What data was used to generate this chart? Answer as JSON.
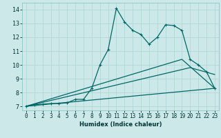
{
  "xlabel": "Humidex (Indice chaleur)",
  "background_color": "#cce8e8",
  "grid_color": "#aad4d4",
  "line_color1": "#006666",
  "line_color2": "#006666",
  "xlim": [
    -0.5,
    23.5
  ],
  "ylim": [
    6.7,
    14.5
  ],
  "xticks": [
    0,
    1,
    2,
    3,
    4,
    5,
    6,
    7,
    8,
    9,
    10,
    11,
    12,
    13,
    14,
    15,
    16,
    17,
    18,
    19,
    20,
    21,
    22,
    23
  ],
  "yticks": [
    7,
    8,
    9,
    10,
    11,
    12,
    13,
    14
  ],
  "series1_x": [
    0,
    1,
    2,
    3,
    4,
    5,
    6,
    7,
    8,
    9,
    10,
    11,
    12,
    13,
    14,
    15,
    16,
    17,
    18,
    19,
    20,
    21,
    22,
    23
  ],
  "series1_y": [
    7.0,
    7.1,
    7.15,
    7.2,
    7.2,
    7.25,
    7.5,
    7.5,
    8.3,
    10.0,
    11.1,
    14.1,
    13.1,
    12.5,
    12.2,
    11.5,
    12.0,
    12.9,
    12.85,
    12.5,
    10.4,
    10.0,
    9.5,
    8.3
  ],
  "series2_x": [
    0,
    23
  ],
  "series2_y": [
    7.0,
    8.3
  ],
  "series3_x": [
    0,
    20,
    23
  ],
  "series3_y": [
    7.0,
    9.8,
    9.3
  ],
  "series4_x": [
    0,
    19,
    23
  ],
  "series4_y": [
    7.0,
    10.4,
    8.3
  ],
  "xlabel_fontsize": 6,
  "tick_fontsize": 5.5
}
